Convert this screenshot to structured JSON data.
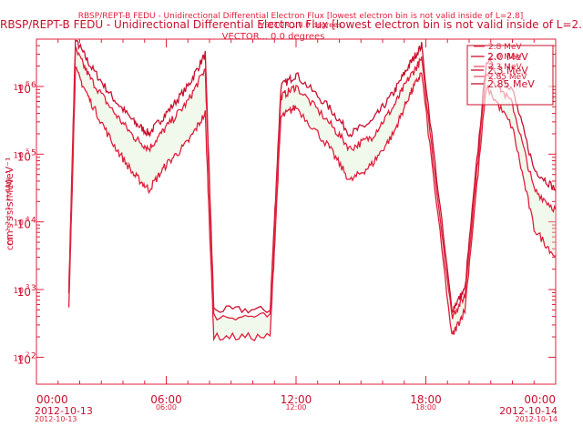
{
  "colors": {
    "ink": "#e0203c",
    "dark": "#c8102e",
    "fill_pink": "#f3c6cf",
    "fill_green": "#d8ecc8",
    "background": "#ffffff"
  },
  "title_back": "RBSP/REPT-B FEDU - Unidirectional Differential Electron Flux [lowest electron bin is not valid inside of L=2.8]",
  "subtitle_back": "VECTOR... 0.0 degrees",
  "title_front": "RBSP/REPT-B  FEDU - Unidirectional Differential Electron Flux [lowest electron bin is not valid inside of L=2.8]",
  "subtitle_front": "VECTOR... 0.0 degrees",
  "chart_data": {
    "type": "line",
    "ylabel_back": "cm⁻²s⁻¹sr⁻¹MeV⁻¹",
    "ylabel_front": "cm⁻²s⁻¹sr⁻¹MeV⁻¹",
    "yscale": "log",
    "ylim": [
      40,
      5000000
    ],
    "xlim_hours": [
      0,
      24
    ],
    "grid": false,
    "legend_placement": "top-right",
    "y_ticks": [
      {
        "value": 100,
        "label": "10",
        "exp": "2"
      },
      {
        "value": 1000,
        "label": "10",
        "exp": "3"
      },
      {
        "value": 10000,
        "label": "10",
        "exp": "4"
      },
      {
        "value": 100000,
        "label": "10",
        "exp": "5"
      },
      {
        "value": 1000000,
        "label": "10",
        "exp": "6"
      }
    ],
    "x_ticks": [
      {
        "value": 0,
        "label": "00:00",
        "date_back": "2012-10-13",
        "date_front": "2012-10-13"
      },
      {
        "value": 6,
        "label": "06:00",
        "back": "06:00"
      },
      {
        "value": 12,
        "label": "12:00",
        "back": "12:00"
      },
      {
        "value": 18,
        "label": "18:00",
        "back": "18:00"
      },
      {
        "value": 24,
        "label": "00:00",
        "date_back": "2012-10-14",
        "date_front": "2012-10-14"
      }
    ],
    "legend_back": [
      "2.8 MeV",
      "2.0 MeV",
      "2.3 MeV",
      "2.85 MeV"
    ],
    "legend_front": [
      "2.0 MeV",
      "2.3 MeV",
      "2.85 MeV"
    ],
    "series": [
      {
        "name": "2.0 MeV",
        "x": [
          1.5,
          1.8,
          2.5,
          3.5,
          4.5,
          5.2,
          6,
          7,
          7.8,
          8.2,
          10.8,
          11.3,
          12,
          13.5,
          14.5,
          15.5,
          16.5,
          17.2,
          17.8,
          19.2,
          19.8,
          20.8,
          22,
          23,
          24
        ],
        "y": [
          1000,
          5000000,
          2000000,
          700000,
          300000,
          200000,
          400000,
          1000000,
          3000000,
          500,
          500,
          1000000,
          1500000,
          500000,
          200000,
          300000,
          800000,
          2000000,
          4000000,
          500,
          1000,
          2500000,
          900000,
          60000,
          30000
        ]
      },
      {
        "name": "2.3 MeV",
        "x": [
          1.5,
          1.8,
          2.5,
          3.5,
          4.5,
          5.2,
          6,
          7,
          7.8,
          8.2,
          10.8,
          11.3,
          12,
          13.5,
          14.5,
          15.5,
          16.5,
          17.2,
          17.8,
          19.2,
          19.8,
          20.8,
          22,
          23,
          24
        ],
        "y": [
          800,
          3500000,
          1300000,
          450000,
          180000,
          120000,
          250000,
          600000,
          1800000,
          400,
          400,
          700000,
          1000000,
          300000,
          120000,
          180000,
          500000,
          1300000,
          2500000,
          400,
          800,
          1700000,
          550000,
          30000,
          15000
        ]
      },
      {
        "name": "2.85 MeV",
        "x": [
          1.5,
          1.8,
          2.5,
          3.5,
          4.5,
          5.2,
          6,
          7,
          7.8,
          8.2,
          10.8,
          11.3,
          12,
          13.5,
          14.5,
          15.5,
          16.5,
          17.2,
          17.8,
          19.2,
          19.8,
          20.8,
          22,
          23,
          24
        ],
        "y": [
          500,
          1800000,
          600000,
          150000,
          50000,
          30000,
          70000,
          150000,
          400000,
          200,
          200,
          350000,
          500000,
          130000,
          40000,
          70000,
          200000,
          700000,
          1600000,
          200,
          500,
          1000000,
          250000,
          8000,
          3000
        ]
      }
    ]
  }
}
